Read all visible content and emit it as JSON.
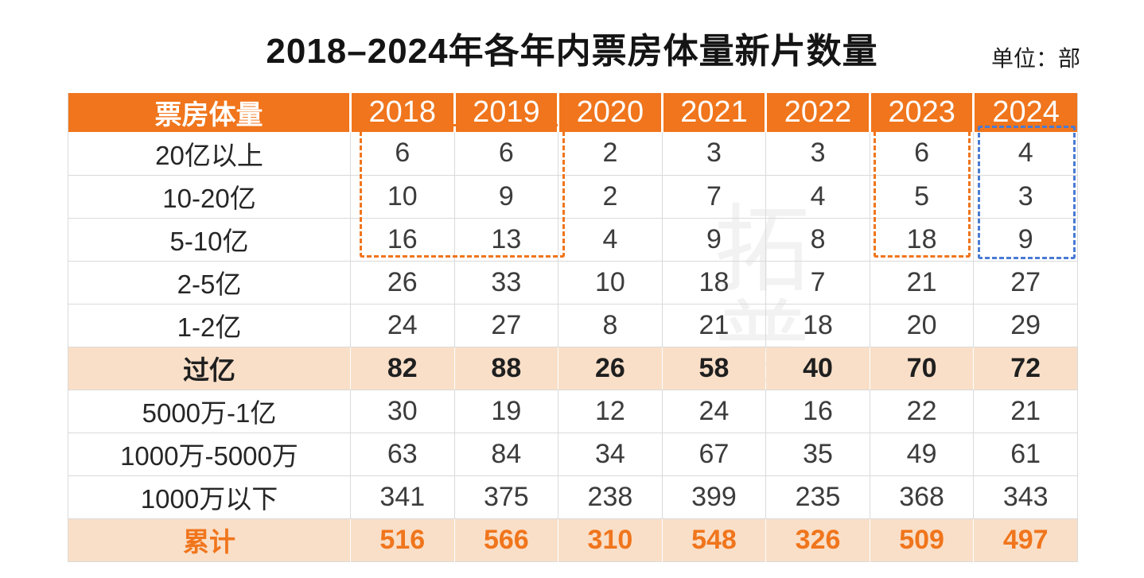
{
  "page": {
    "title": "2018–2024年各年内票房体量新片数量",
    "unit_label": "单位：部",
    "watermark": "拓普"
  },
  "colors": {
    "header-bg": "#F0751C",
    "header-text": "#FFFFFF",
    "highlight-bg": "#F9DFC8",
    "total-text": "#F0751C",
    "body-text": "#3C3C3C",
    "label-text": "#262626",
    "grid-line": "#DADADA",
    "dash-orange": "#F0751C",
    "dash-blue": "#4A7BD4"
  },
  "chart_data": {
    "type": "table",
    "title": "2018–2024年各年内票房体量新片数量",
    "unit": "部",
    "corner_header": "票房体量",
    "categories": [
      "2018",
      "2019",
      "2020",
      "2021",
      "2022",
      "2023",
      "2024"
    ],
    "series": [
      {
        "name": "20亿以上",
        "values": [
          6,
          6,
          2,
          3,
          3,
          6,
          4
        ],
        "row_style": "normal"
      },
      {
        "name": "10-20亿",
        "values": [
          10,
          9,
          2,
          7,
          4,
          5,
          3
        ],
        "row_style": "normal"
      },
      {
        "name": "5-10亿",
        "values": [
          16,
          13,
          4,
          9,
          8,
          18,
          9
        ],
        "row_style": "normal"
      },
      {
        "name": "2-5亿",
        "values": [
          26,
          33,
          10,
          18,
          7,
          21,
          27
        ],
        "row_style": "normal"
      },
      {
        "name": "1-2亿",
        "values": [
          24,
          27,
          8,
          21,
          18,
          20,
          29
        ],
        "row_style": "normal"
      },
      {
        "name": "过亿",
        "values": [
          82,
          88,
          26,
          58,
          40,
          70,
          72
        ],
        "row_style": "subtotal"
      },
      {
        "name": "5000万-1亿",
        "values": [
          30,
          19,
          12,
          24,
          16,
          22,
          21
        ],
        "row_style": "normal"
      },
      {
        "name": "1000万-5000万",
        "values": [
          63,
          84,
          34,
          67,
          35,
          49,
          61
        ],
        "row_style": "normal"
      },
      {
        "name": "1000万以下",
        "values": [
          341,
          375,
          238,
          399,
          235,
          368,
          343
        ],
        "row_style": "normal"
      },
      {
        "name": "累计",
        "values": [
          516,
          566,
          310,
          548,
          326,
          509,
          497
        ],
        "row_style": "total"
      }
    ],
    "annotations": [
      {
        "name": "dashed-box-2018-2019",
        "columns": [
          "2018",
          "2019"
        ],
        "rows": [
          "20亿以上",
          "10-20亿",
          "5-10亿"
        ],
        "color": "#F0751C"
      },
      {
        "name": "dashed-box-2023",
        "columns": [
          "2023"
        ],
        "rows": [
          "20亿以上",
          "10-20亿",
          "5-10亿"
        ],
        "color": "#F0751C"
      },
      {
        "name": "dashed-box-2024",
        "columns": [
          "2024"
        ],
        "rows": [
          "20亿以上",
          "10-20亿",
          "5-10亿"
        ],
        "color": "#4A7BD4"
      }
    ],
    "layout": {
      "grid": "on",
      "highlight_rows": [
        "过亿",
        "累计"
      ]
    }
  }
}
